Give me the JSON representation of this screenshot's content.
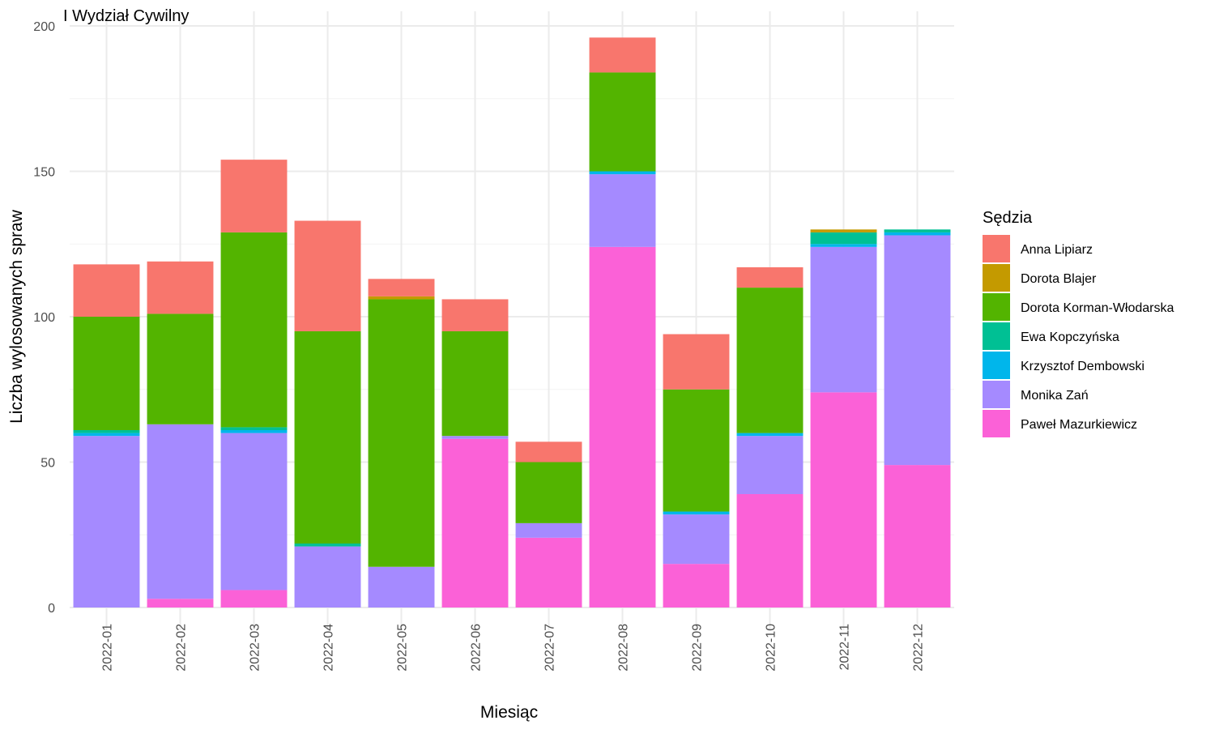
{
  "chart_data": {
    "type": "bar",
    "stacked": true,
    "title": "I Wydział Cywilny",
    "xlabel": "Miesiąc",
    "ylabel": "Liczba wylosowanych spraw",
    "ylim": [
      0,
      200
    ],
    "yticks": [
      0,
      50,
      100,
      150,
      200
    ],
    "grid": true,
    "legend_title": "Sędzia",
    "legend_position": "right",
    "categories": [
      "2022-01",
      "2022-02",
      "2022-03",
      "2022-04",
      "2022-05",
      "2022-06",
      "2022-07",
      "2022-08",
      "2022-09",
      "2022-10",
      "2022-11",
      "2022-12"
    ],
    "series": [
      {
        "name": "Paweł Mazurkiewicz",
        "color": "#FB61D7",
        "values": [
          0,
          3,
          6,
          0,
          0,
          58,
          24,
          124,
          15,
          39,
          74,
          49
        ]
      },
      {
        "name": "Monika Zań",
        "color": "#A58AFF",
        "values": [
          59,
          60,
          54,
          21,
          14,
          1,
          5,
          25,
          17,
          20,
          50,
          79
        ]
      },
      {
        "name": "Krzysztof Dembowski",
        "color": "#00B6EB",
        "values": [
          1,
          0,
          1,
          0,
          0,
          0,
          0,
          1,
          1,
          1,
          1,
          1
        ]
      },
      {
        "name": "Ewa Kopczyńska",
        "color": "#00C094",
        "values": [
          1,
          0,
          1,
          1,
          0,
          0,
          0,
          0,
          0,
          0,
          4,
          1
        ]
      },
      {
        "name": "Dorota Korman-Włodarska",
        "color": "#53B400",
        "values": [
          39,
          38,
          67,
          73,
          92,
          36,
          21,
          34,
          42,
          50,
          0,
          0
        ]
      },
      {
        "name": "Dorota Blajer",
        "color": "#C49A00",
        "values": [
          0,
          0,
          0,
          0,
          1,
          0,
          0,
          0,
          0,
          0,
          1,
          0
        ]
      },
      {
        "name": "Anna Lipiarz",
        "color": "#F8766D",
        "values": [
          18,
          18,
          25,
          38,
          6,
          11,
          7,
          12,
          19,
          7,
          0,
          0
        ]
      }
    ],
    "legend_order": [
      "Anna Lipiarz",
      "Dorota Blajer",
      "Dorota Korman-Włodarska",
      "Ewa Kopczyńska",
      "Krzysztof Dembowski",
      "Monika Zań",
      "Paweł Mazurkiewicz"
    ]
  }
}
